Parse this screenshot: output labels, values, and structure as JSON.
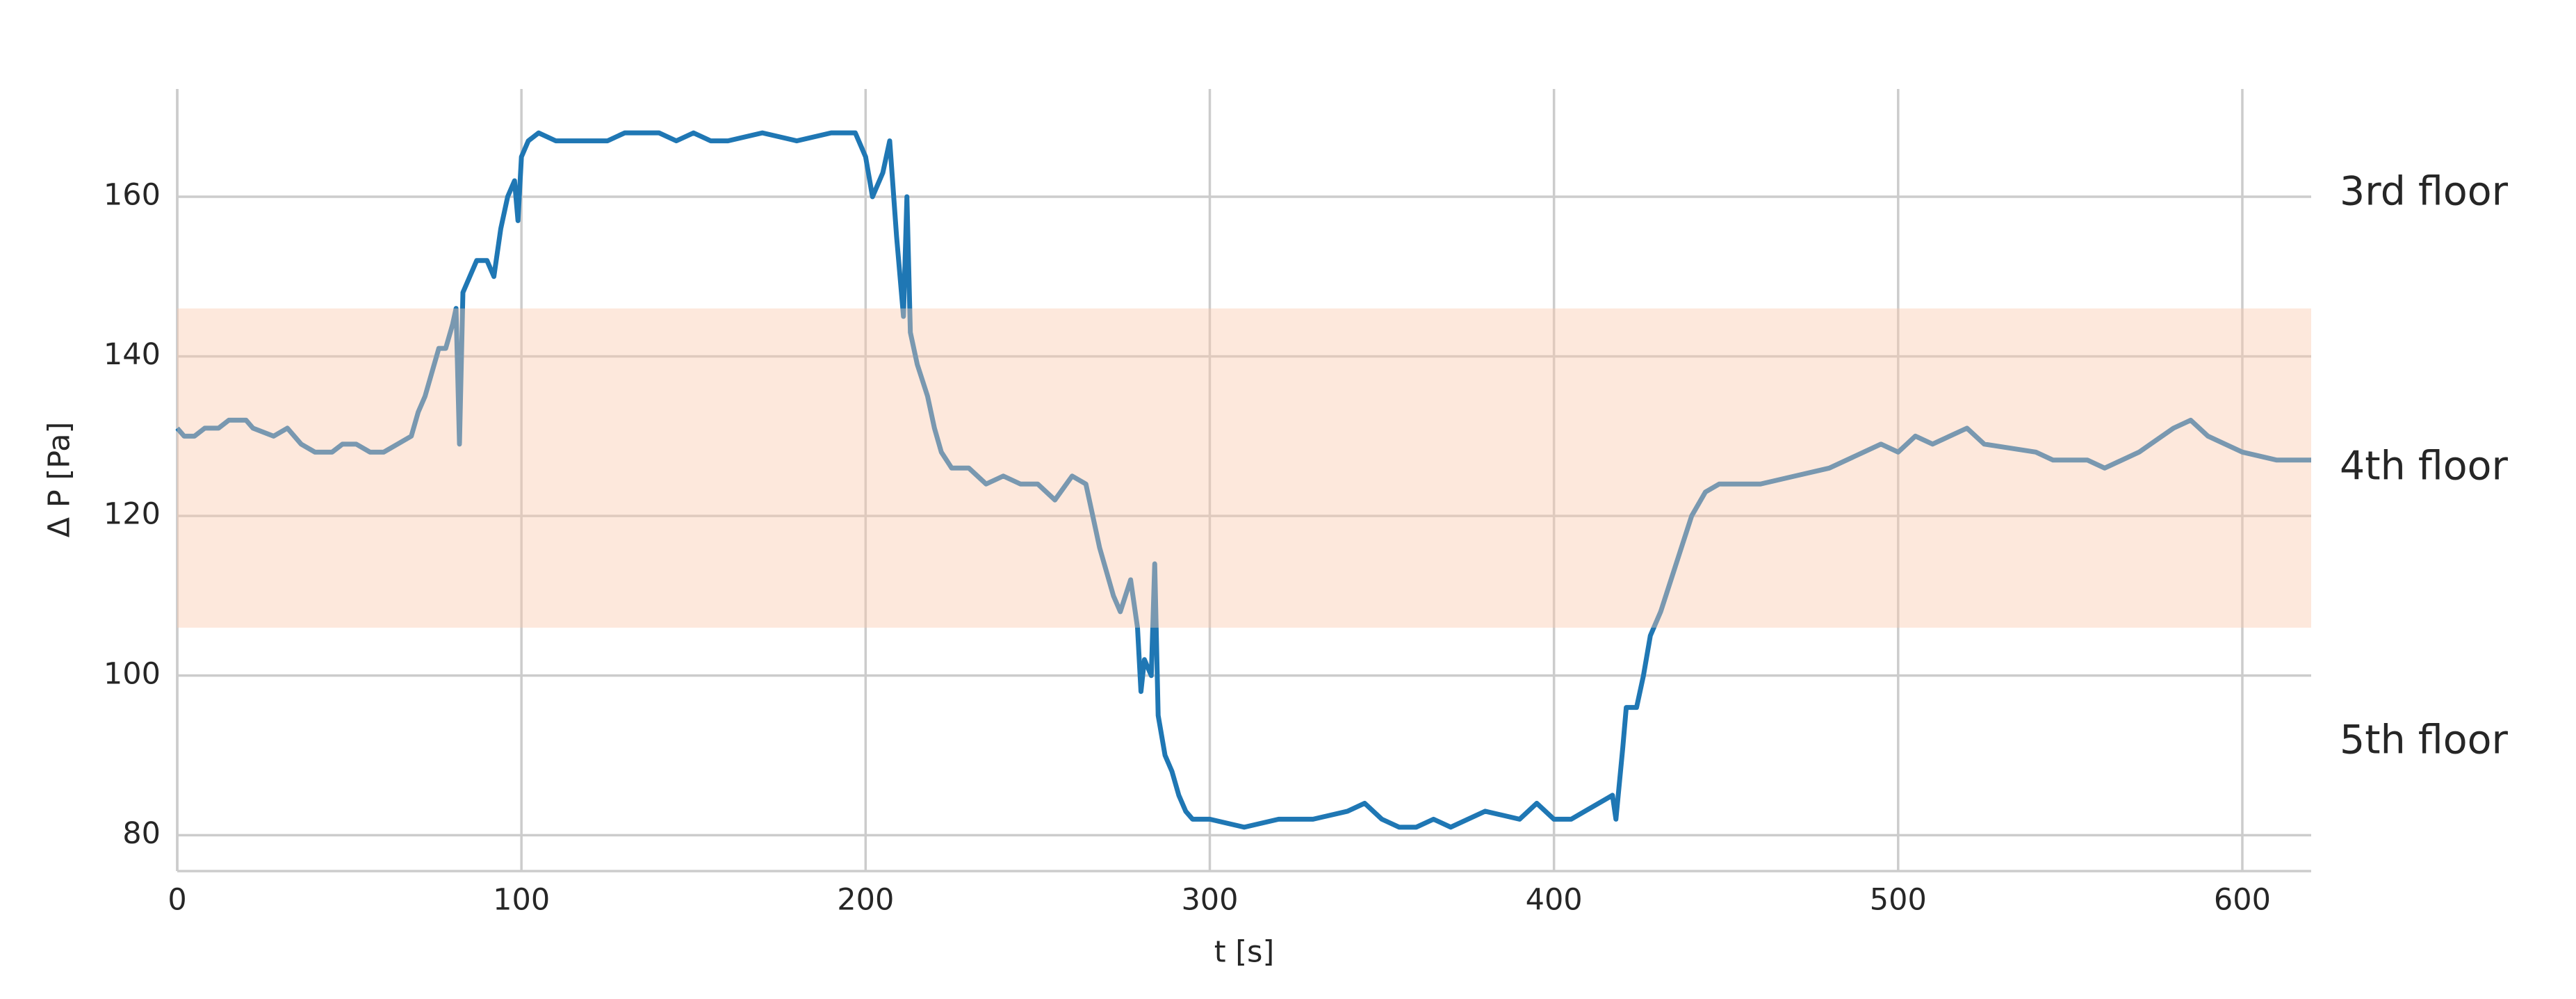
{
  "chart_data": {
    "type": "line",
    "xlabel": "t [s]",
    "ylabel": "Δ P [Pa]",
    "xlim": [
      0,
      620
    ],
    "xticks": [
      0,
      100,
      200,
      300,
      400,
      500,
      600
    ],
    "ylim": [
      75.5,
      173.5
    ],
    "yticks": [
      80,
      100,
      120,
      140,
      160
    ],
    "grid": true,
    "shaded_band": {
      "ymin": 106,
      "ymax": 146,
      "color": "#fac8aa",
      "opacity": 0.41
    },
    "annotations": [
      "3rd floor",
      "4th floor",
      "5th floor"
    ],
    "series": [
      {
        "color": "#1f77b4",
        "x": [
          0,
          2,
          5,
          8,
          12,
          15,
          20,
          22,
          28,
          32,
          36,
          40,
          45,
          48,
          52,
          56,
          60,
          64,
          68,
          70,
          72,
          74,
          76,
          78,
          80,
          81,
          82,
          83,
          85,
          87,
          90,
          92,
          94,
          96,
          98,
          99,
          100,
          102,
          105,
          110,
          120,
          125,
          130,
          140,
          145,
          150,
          155,
          160,
          170,
          180,
          190,
          197,
          200,
          202,
          205,
          207,
          209,
          211,
          212,
          213,
          215,
          218,
          220,
          222,
          225,
          230,
          235,
          240,
          245,
          250,
          255,
          260,
          264,
          266,
          268,
          270,
          272,
          274,
          277,
          279,
          280,
          281,
          283,
          284,
          285,
          287,
          289,
          291,
          293,
          295,
          300,
          310,
          320,
          330,
          340,
          345,
          350,
          355,
          360,
          365,
          370,
          380,
          390,
          395,
          400,
          405,
          417,
          418,
          420,
          421,
          424,
          426,
          428,
          431,
          434,
          437,
          440,
          444,
          448,
          455,
          460,
          470,
          480,
          490,
          495,
          500,
          505,
          510,
          515,
          520,
          525,
          540,
          545,
          555,
          560,
          570,
          580,
          585,
          590,
          600,
          610,
          620
        ],
        "values": [
          131,
          130,
          130,
          131,
          131,
          132,
          132,
          131,
          130,
          131,
          129,
          128,
          128,
          129,
          129,
          128,
          128,
          129,
          130,
          133,
          135,
          138,
          141,
          141,
          144,
          146,
          129,
          148,
          150,
          152,
          152,
          150,
          156,
          160,
          162,
          157,
          165,
          167,
          168,
          167,
          167,
          167,
          168,
          168,
          167,
          168,
          167,
          167,
          168,
          167,
          168,
          168,
          165,
          160,
          163,
          167,
          155,
          145,
          160,
          143,
          139,
          135,
          131,
          128,
          126,
          126,
          124,
          125,
          124,
          124,
          122,
          125,
          124,
          120,
          116,
          113,
          110,
          108,
          112,
          106,
          98,
          102,
          100,
          114,
          95,
          90,
          88,
          85,
          83,
          82,
          82,
          81,
          82,
          82,
          83,
          84,
          82,
          81,
          81,
          82,
          81,
          83,
          82,
          84,
          82,
          82,
          85,
          82,
          91,
          96,
          96,
          100,
          105,
          108,
          112,
          116,
          120,
          123,
          124,
          124,
          124,
          125,
          126,
          128,
          129,
          128,
          130,
          129,
          130,
          131,
          129,
          128,
          127,
          127,
          126,
          128,
          131,
          132,
          130,
          128,
          127,
          127
        ]
      }
    ]
  }
}
